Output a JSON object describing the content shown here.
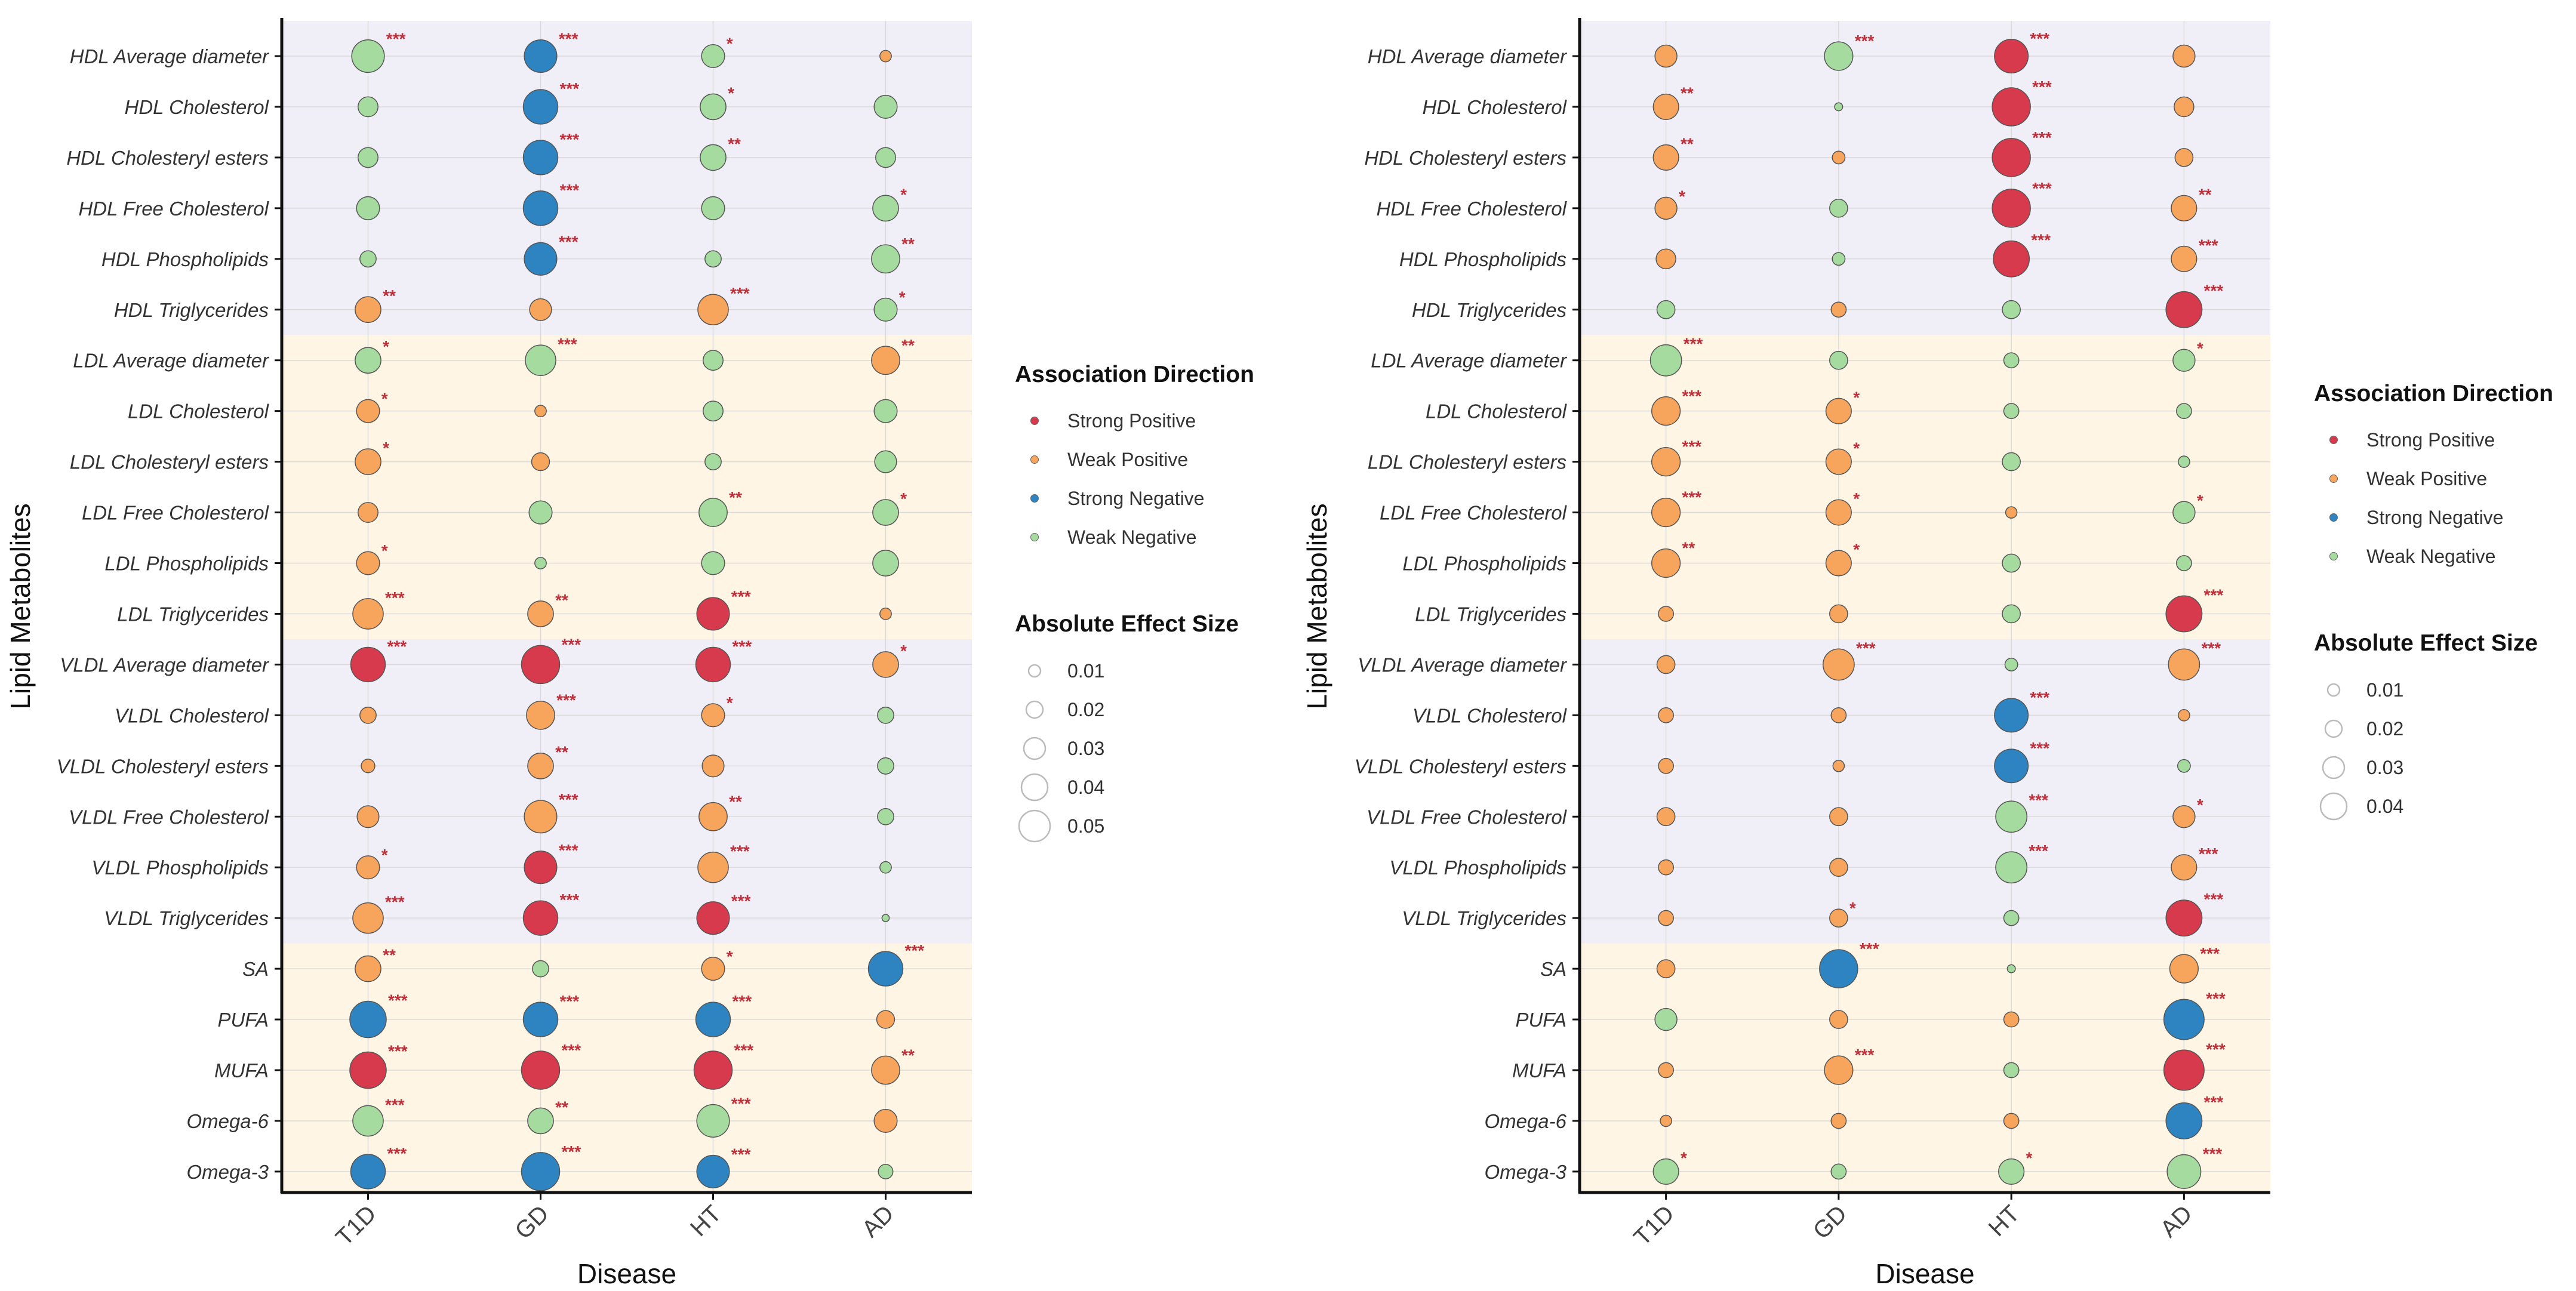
{
  "figure": {
    "xlabel": "Disease",
    "ylabel": "Lipid Metabolites",
    "categories": [
      "T1D",
      "GD",
      "HT",
      "AD"
    ],
    "metabolites": [
      "HDL Average diameter",
      "HDL Cholesterol",
      "HDL Cholesteryl esters",
      "HDL Free Cholesterol",
      "HDL Phospholipids",
      "HDL Triglycerides",
      "LDL Average diameter",
      "LDL Cholesterol",
      "LDL Cholesteryl esters",
      "LDL Free Cholesterol",
      "LDL Phospholipids",
      "LDL Triglycerides",
      "VLDL Average diameter",
      "VLDL Cholesterol",
      "VLDL Cholesteryl esters",
      "VLDL Free Cholesterol",
      "VLDL Phospholipids",
      "VLDL Triglycerides",
      "SA",
      "PUFA",
      "MUFA",
      "Omega-6",
      "Omega-3"
    ],
    "bands": [
      {
        "from": 0,
        "to": 5,
        "color": "#f0eff7"
      },
      {
        "from": 6,
        "to": 11,
        "color": "#fef5e4"
      },
      {
        "from": 12,
        "to": 17,
        "color": "#f0eff7"
      },
      {
        "from": 18,
        "to": 22,
        "color": "#fef5e4"
      }
    ],
    "colors": {
      "Strong Positive": "#d63a4c",
      "Weak Positive": "#f7a45c",
      "Strong Negative": "#2e84c1",
      "Weak Negative": "#a6dba0",
      "significance": "#c0303a",
      "axis": "#111111",
      "grid": "#dadada"
    },
    "codes": {
      "SP": "Strong Positive",
      "WP": "Weak Positive",
      "SN": "Strong Negative",
      "WN": "Weak Negative"
    },
    "legend_direction_title": "Association Direction",
    "legend_size_title": "Absolute Effect Size"
  },
  "chart_data": [
    {
      "type": "scatter",
      "panel": "left",
      "xlabel": "Disease",
      "ylabel": "Lipid Metabolites",
      "legend_direction": [
        "Strong Positive",
        "Weak Positive",
        "Strong Negative",
        "Weak Negative"
      ],
      "size_legend_values": [
        0.01,
        0.02,
        0.03,
        0.04,
        0.05
      ],
      "size_legend_labels": [
        "0.01",
        "0.02",
        "0.03",
        "0.04",
        "0.05"
      ],
      "size_max": 0.055,
      "rows": [
        [
          [
            "WN",
            0.04,
            "***"
          ],
          [
            "SN",
            0.04,
            "***"
          ],
          [
            "WN",
            0.02,
            "*"
          ],
          [
            "WP",
            0.005,
            ""
          ]
        ],
        [
          [
            "WN",
            0.015,
            ""
          ],
          [
            "SN",
            0.045,
            "***"
          ],
          [
            "WN",
            0.025,
            "*"
          ],
          [
            "WN",
            0.02,
            ""
          ]
        ],
        [
          [
            "WN",
            0.015,
            ""
          ],
          [
            "SN",
            0.045,
            "***"
          ],
          [
            "WN",
            0.025,
            "**"
          ],
          [
            "WN",
            0.015,
            ""
          ]
        ],
        [
          [
            "WN",
            0.02,
            ""
          ],
          [
            "SN",
            0.045,
            "***"
          ],
          [
            "WN",
            0.02,
            ""
          ],
          [
            "WN",
            0.025,
            "*"
          ]
        ],
        [
          [
            "WN",
            0.01,
            ""
          ],
          [
            "SN",
            0.04,
            "***"
          ],
          [
            "WN",
            0.01,
            ""
          ],
          [
            "WN",
            0.03,
            "**"
          ]
        ],
        [
          [
            "WP",
            0.025,
            "**"
          ],
          [
            "WP",
            0.018,
            ""
          ],
          [
            "WP",
            0.035,
            "***"
          ],
          [
            "WN",
            0.02,
            "*"
          ]
        ],
        [
          [
            "WN",
            0.025,
            "*"
          ],
          [
            "WN",
            0.035,
            "***"
          ],
          [
            "WN",
            0.015,
            ""
          ],
          [
            "WP",
            0.03,
            "**"
          ]
        ],
        [
          [
            "WP",
            0.02,
            "*"
          ],
          [
            "WP",
            0.005,
            ""
          ],
          [
            "WN",
            0.015,
            ""
          ],
          [
            "WN",
            0.02,
            ""
          ]
        ],
        [
          [
            "WP",
            0.025,
            "*"
          ],
          [
            "WP",
            0.012,
            ""
          ],
          [
            "WN",
            0.01,
            ""
          ],
          [
            "WN",
            0.018,
            ""
          ]
        ],
        [
          [
            "WP",
            0.015,
            ""
          ],
          [
            "WN",
            0.02,
            ""
          ],
          [
            "WN",
            0.03,
            "**"
          ],
          [
            "WN",
            0.025,
            "*"
          ]
        ],
        [
          [
            "WP",
            0.02,
            "*"
          ],
          [
            "WN",
            0.005,
            ""
          ],
          [
            "WN",
            0.02,
            ""
          ],
          [
            "WN",
            0.025,
            ""
          ]
        ],
        [
          [
            "WP",
            0.035,
            "***"
          ],
          [
            "WP",
            0.025,
            "**"
          ],
          [
            "SP",
            0.04,
            "***"
          ],
          [
            "WP",
            0.005,
            ""
          ]
        ],
        [
          [
            "SP",
            0.045,
            "***"
          ],
          [
            "SP",
            0.055,
            "***"
          ],
          [
            "SP",
            0.045,
            "***"
          ],
          [
            "WP",
            0.025,
            "*"
          ]
        ],
        [
          [
            "WP",
            0.01,
            ""
          ],
          [
            "WP",
            0.03,
            "***"
          ],
          [
            "WP",
            0.02,
            "*"
          ],
          [
            "WN",
            0.01,
            ""
          ]
        ],
        [
          [
            "WP",
            0.007,
            ""
          ],
          [
            "WP",
            0.025,
            "**"
          ],
          [
            "WP",
            0.018,
            ""
          ],
          [
            "WN",
            0.01,
            ""
          ]
        ],
        [
          [
            "WP",
            0.018,
            ""
          ],
          [
            "WP",
            0.04,
            "***"
          ],
          [
            "WP",
            0.03,
            "**"
          ],
          [
            "WN",
            0.01,
            ""
          ]
        ],
        [
          [
            "WP",
            0.02,
            "*"
          ],
          [
            "SP",
            0.04,
            "***"
          ],
          [
            "WP",
            0.035,
            "***"
          ],
          [
            "WN",
            0.005,
            ""
          ]
        ],
        [
          [
            "WP",
            0.035,
            "***"
          ],
          [
            "SP",
            0.045,
            "***"
          ],
          [
            "SP",
            0.04,
            "***"
          ],
          [
            "WN",
            0.002,
            ""
          ]
        ],
        [
          [
            "WP",
            0.025,
            "**"
          ],
          [
            "WN",
            0.01,
            ""
          ],
          [
            "WP",
            0.02,
            "*"
          ],
          [
            "SN",
            0.045,
            "***"
          ]
        ],
        [
          [
            "SN",
            0.05,
            "***"
          ],
          [
            "SN",
            0.045,
            "***"
          ],
          [
            "SN",
            0.045,
            "***"
          ],
          [
            "WP",
            0.012,
            ""
          ]
        ],
        [
          [
            "SP",
            0.05,
            "***"
          ],
          [
            "SP",
            0.055,
            "***"
          ],
          [
            "SP",
            0.055,
            "***"
          ],
          [
            "WP",
            0.03,
            "**"
          ]
        ],
        [
          [
            "WN",
            0.035,
            "***"
          ],
          [
            "WN",
            0.025,
            "**"
          ],
          [
            "WN",
            0.04,
            "***"
          ],
          [
            "WP",
            0.02,
            ""
          ]
        ],
        [
          [
            "SN",
            0.045,
            "***"
          ],
          [
            "SN",
            0.055,
            "***"
          ],
          [
            "SN",
            0.04,
            "***"
          ],
          [
            "WN",
            0.008,
            ""
          ]
        ]
      ]
    },
    {
      "type": "scatter",
      "panel": "right",
      "xlabel": "Disease",
      "ylabel": "Lipid Metabolites",
      "legend_direction": [
        "Strong Positive",
        "Weak Positive",
        "Strong Negative",
        "Weak Negative"
      ],
      "size_legend_values": [
        0.01,
        0.02,
        0.03,
        0.04
      ],
      "size_legend_labels": [
        "0.01",
        "0.02",
        "0.03",
        "0.04"
      ],
      "size_max": 0.045,
      "rows": [
        [
          [
            "WP",
            0.015,
            ""
          ],
          [
            "WN",
            0.025,
            "***"
          ],
          [
            "SP",
            0.035,
            "***"
          ],
          [
            "WP",
            0.015,
            ""
          ]
        ],
        [
          [
            "WP",
            0.02,
            "**"
          ],
          [
            "WN",
            0.002,
            ""
          ],
          [
            "SP",
            0.045,
            "***"
          ],
          [
            "WP",
            0.012,
            ""
          ]
        ],
        [
          [
            "WP",
            0.02,
            "**"
          ],
          [
            "WP",
            0.005,
            ""
          ],
          [
            "SP",
            0.045,
            "***"
          ],
          [
            "WP",
            0.01,
            ""
          ]
        ],
        [
          [
            "WP",
            0.015,
            "*"
          ],
          [
            "WN",
            0.01,
            ""
          ],
          [
            "SP",
            0.045,
            "***"
          ],
          [
            "WP",
            0.02,
            "**"
          ]
        ],
        [
          [
            "WP",
            0.012,
            ""
          ],
          [
            "WN",
            0.005,
            ""
          ],
          [
            "SP",
            0.04,
            "***"
          ],
          [
            "WP",
            0.02,
            "***"
          ]
        ],
        [
          [
            "WN",
            0.01,
            ""
          ],
          [
            "WP",
            0.007,
            ""
          ],
          [
            "WN",
            0.01,
            ""
          ],
          [
            "SP",
            0.04,
            "***"
          ]
        ],
        [
          [
            "WN",
            0.03,
            "***"
          ],
          [
            "WN",
            0.01,
            ""
          ],
          [
            "WN",
            0.007,
            ""
          ],
          [
            "WN",
            0.015,
            "*"
          ]
        ],
        [
          [
            "WP",
            0.025,
            "***"
          ],
          [
            "WP",
            0.02,
            "*"
          ],
          [
            "WN",
            0.007,
            ""
          ],
          [
            "WN",
            0.007,
            ""
          ]
        ],
        [
          [
            "WP",
            0.025,
            "***"
          ],
          [
            "WP",
            0.02,
            "*"
          ],
          [
            "WN",
            0.01,
            ""
          ],
          [
            "WN",
            0.004,
            ""
          ]
        ],
        [
          [
            "WP",
            0.025,
            "***"
          ],
          [
            "WP",
            0.02,
            "*"
          ],
          [
            "WP",
            0.004,
            ""
          ],
          [
            "WN",
            0.015,
            "*"
          ]
        ],
        [
          [
            "WP",
            0.025,
            "**"
          ],
          [
            "WP",
            0.02,
            "*"
          ],
          [
            "WN",
            0.01,
            ""
          ],
          [
            "WN",
            0.007,
            ""
          ]
        ],
        [
          [
            "WP",
            0.007,
            ""
          ],
          [
            "WP",
            0.01,
            ""
          ],
          [
            "WN",
            0.01,
            ""
          ],
          [
            "SP",
            0.04,
            "***"
          ]
        ],
        [
          [
            "WP",
            0.01,
            ""
          ],
          [
            "WP",
            0.03,
            "***"
          ],
          [
            "WN",
            0.005,
            ""
          ],
          [
            "WP",
            0.03,
            "***"
          ]
        ],
        [
          [
            "WP",
            0.007,
            ""
          ],
          [
            "WP",
            0.007,
            ""
          ],
          [
            "SN",
            0.035,
            "***"
          ],
          [
            "WP",
            0.004,
            ""
          ]
        ],
        [
          [
            "WP",
            0.007,
            ""
          ],
          [
            "WP",
            0.004,
            ""
          ],
          [
            "SN",
            0.035,
            "***"
          ],
          [
            "WN",
            0.005,
            ""
          ]
        ],
        [
          [
            "WP",
            0.01,
            ""
          ],
          [
            "WP",
            0.01,
            ""
          ],
          [
            "WN",
            0.03,
            "***"
          ],
          [
            "WP",
            0.015,
            "*"
          ]
        ],
        [
          [
            "WP",
            0.007,
            ""
          ],
          [
            "WP",
            0.01,
            ""
          ],
          [
            "WN",
            0.03,
            "***"
          ],
          [
            "WP",
            0.02,
            "***"
          ]
        ],
        [
          [
            "WP",
            0.007,
            ""
          ],
          [
            "WP",
            0.01,
            "*"
          ],
          [
            "WN",
            0.007,
            ""
          ],
          [
            "SP",
            0.04,
            "***"
          ]
        ],
        [
          [
            "WP",
            0.01,
            ""
          ],
          [
            "SN",
            0.045,
            "***"
          ],
          [
            "WN",
            0.002,
            ""
          ],
          [
            "WP",
            0.025,
            "***"
          ]
        ],
        [
          [
            "WN",
            0.015,
            ""
          ],
          [
            "WP",
            0.01,
            ""
          ],
          [
            "WP",
            0.007,
            ""
          ],
          [
            "SN",
            0.05,
            "***"
          ]
        ],
        [
          [
            "WP",
            0.007,
            ""
          ],
          [
            "WP",
            0.025,
            "***"
          ],
          [
            "WN",
            0.007,
            ""
          ],
          [
            "SP",
            0.05,
            "***"
          ]
        ],
        [
          [
            "WP",
            0.004,
            ""
          ],
          [
            "WP",
            0.007,
            ""
          ],
          [
            "WP",
            0.007,
            ""
          ],
          [
            "SN",
            0.04,
            "***"
          ]
        ],
        [
          [
            "WN",
            0.02,
            "*"
          ],
          [
            "WN",
            0.007,
            ""
          ],
          [
            "WN",
            0.02,
            "*"
          ],
          [
            "WN",
            0.035,
            "***"
          ]
        ]
      ]
    }
  ]
}
